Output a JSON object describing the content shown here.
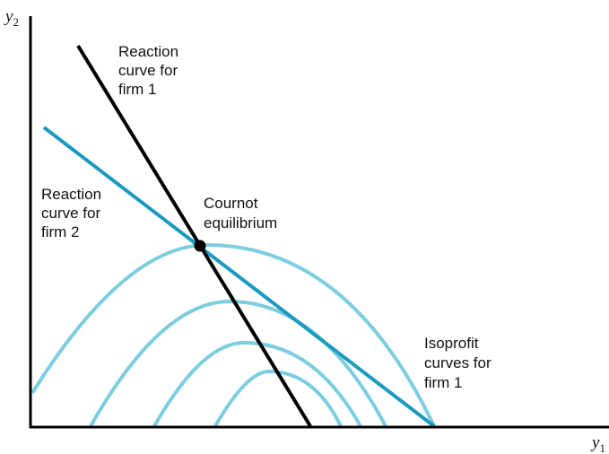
{
  "axes": {
    "x_label": "y",
    "x_subscript": "1",
    "y_label": "y",
    "y_subscript": "2"
  },
  "labels": {
    "reaction_firm1": [
      "Reaction",
      "curve for",
      "firm 1"
    ],
    "reaction_firm2": [
      "Reaction",
      "curve for",
      "firm 2"
    ],
    "cournot": [
      "Cournot",
      "equilibrium"
    ],
    "isoprofit": [
      "Isoprofit",
      "curves for",
      "firm 1"
    ]
  },
  "colors": {
    "axis": "#000000",
    "reaction_firm1": "#000000",
    "reaction_firm2": "#1b9ac0",
    "isoprofit": "#7ccde0",
    "equilibrium_point": "#000000"
  }
}
